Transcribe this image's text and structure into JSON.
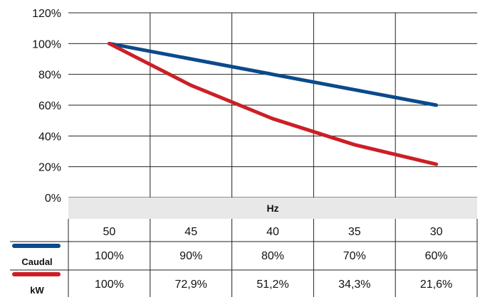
{
  "chart_data": {
    "type": "line",
    "xlabel": "Hz",
    "categories": [
      "50",
      "45",
      "40",
      "35",
      "30"
    ],
    "y_ticks": [
      "0%",
      "20%",
      "40%",
      "60%",
      "80%",
      "100%",
      "120%"
    ],
    "ylim": [
      0,
      120
    ],
    "grid": true,
    "legend": "table-below",
    "series": [
      {
        "name": "Caudal",
        "color": "#0b4a8b",
        "values": [
          100,
          90,
          80,
          70,
          60
        ],
        "labels": [
          "100%",
          "90%",
          "80%",
          "70%",
          "60%"
        ]
      },
      {
        "name": "kW",
        "color": "#cc1f26",
        "values": [
          100,
          72.9,
          51.2,
          34.3,
          21.6
        ],
        "labels": [
          "100%",
          "72,9%",
          "51,2%",
          "34,3%",
          "21,6%"
        ]
      }
    ]
  }
}
